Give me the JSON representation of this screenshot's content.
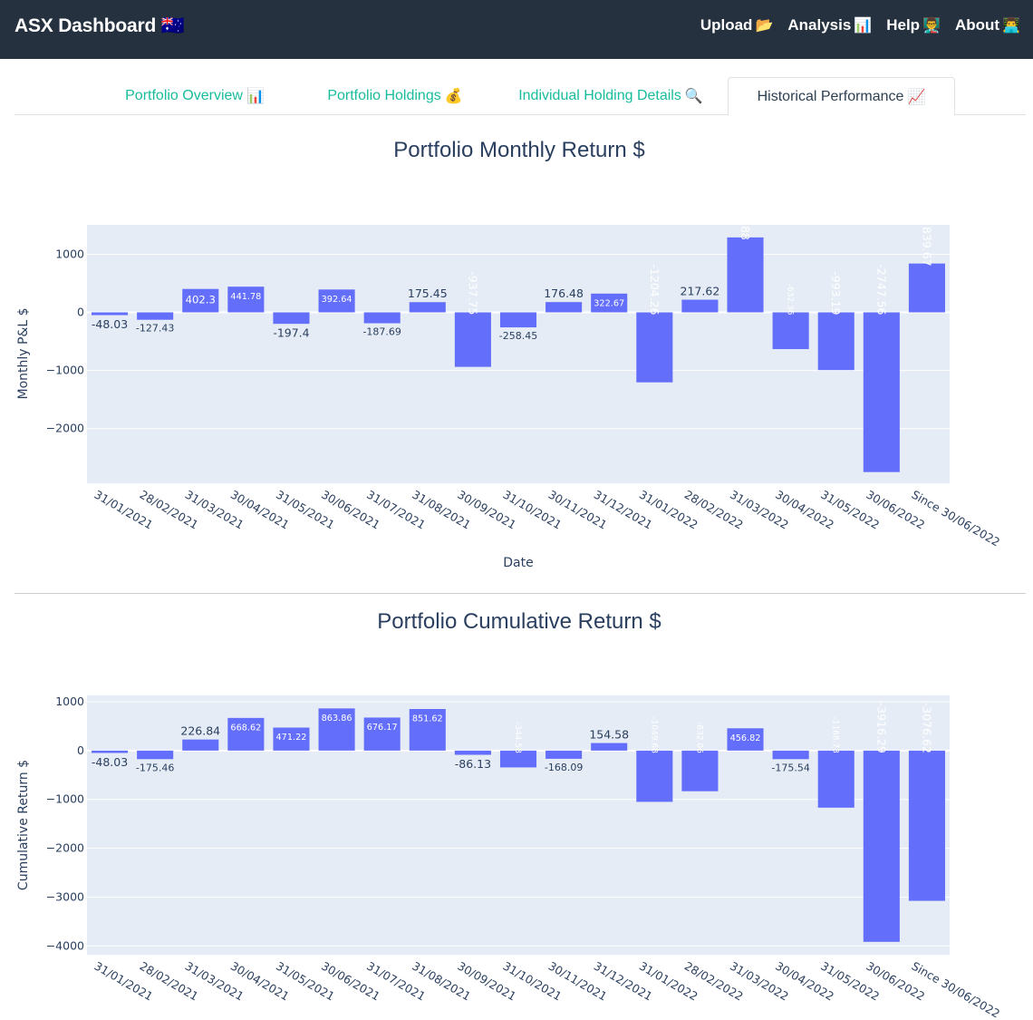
{
  "navbar": {
    "brand": "ASX Dashboard",
    "brand_icon": "🇦🇺",
    "links": [
      {
        "label": "Upload",
        "icon": "📂"
      },
      {
        "label": "Analysis",
        "icon": "📊"
      },
      {
        "label": "Help",
        "icon": "👨‍🏫"
      },
      {
        "label": "About",
        "icon": "👨‍💻"
      }
    ]
  },
  "tabs": [
    {
      "label": "Portfolio Overview",
      "icon": "📊",
      "active": false
    },
    {
      "label": "Portfolio Holdings",
      "icon": "💰",
      "active": false
    },
    {
      "label": "Individual Holding Details",
      "icon": "🔍",
      "active": false
    },
    {
      "label": "Historical Performance",
      "icon": "📈",
      "active": true
    }
  ],
  "colors": {
    "navbar_bg": "#263140",
    "tab_link": "#18bc9c",
    "bar": "#636efa",
    "plot_bg": "#e5ecf6"
  },
  "chart_data": [
    {
      "type": "bar",
      "title": "Portfolio Monthly Return $",
      "xlabel": "Date",
      "ylabel": "Monthly P&L $",
      "ylim": [
        -2940,
        1505
      ],
      "yticks": [
        "1000",
        "0",
        "−1000",
        "−2000"
      ],
      "ytick_values": [
        1000,
        0,
        -1000,
        -2000
      ],
      "categories": [
        "31/01/2021",
        "28/02/2021",
        "31/03/2021",
        "30/04/2021",
        "31/05/2021",
        "30/06/2021",
        "31/07/2021",
        "31/08/2021",
        "30/09/2021",
        "31/10/2021",
        "30/11/2021",
        "31/12/2021",
        "31/01/2022",
        "28/02/2022",
        "31/03/2022",
        "30/04/2022",
        "31/05/2022",
        "30/06/2022",
        "Since 30/06/2022"
      ],
      "values": [
        -48.03,
        -127.43,
        402.3,
        441.78,
        -197.4,
        392.64,
        -187.69,
        175.45,
        -937.75,
        -258.45,
        176.48,
        322.67,
        -1204.26,
        217.62,
        1288.88,
        -632.36,
        -993.19,
        -2747.56,
        839.67
      ],
      "labels": [
        "-48.03",
        "-127.43",
        "402.3",
        "441.78",
        "-197.4",
        "392.64",
        "-187.69",
        "175.45",
        "-937.75",
        "-258.45",
        "176.48",
        "322.67",
        "-1204.26",
        "217.62",
        "1288.88",
        "-632.36",
        "-993.19",
        "-2747.56",
        "839.67"
      ],
      "grid": true
    },
    {
      "type": "bar",
      "title": "Portfolio Cumulative Return $",
      "xlabel": "",
      "ylabel": "Cumulative Return $",
      "ylim": [
        -4180,
        1130
      ],
      "yticks": [
        "1000",
        "0",
        "−1000",
        "−2000",
        "−3000",
        "−4000"
      ],
      "ytick_values": [
        1000,
        0,
        -1000,
        -2000,
        -3000,
        -4000
      ],
      "categories": [
        "31/01/2021",
        "28/02/2021",
        "31/03/2021",
        "30/04/2021",
        "31/05/2021",
        "30/06/2021",
        "31/07/2021",
        "31/08/2021",
        "30/09/2021",
        "31/10/2021",
        "30/11/2021",
        "31/12/2021",
        "31/01/2022",
        "28/02/2022",
        "31/03/2022",
        "30/04/2022",
        "31/05/2022",
        "30/06/2022",
        "Since 30/06/2022"
      ],
      "values": [
        -48.03,
        -175.46,
        226.84,
        668.62,
        471.22,
        863.86,
        676.17,
        851.62,
        -86.13,
        -344.58,
        -168.09,
        154.58,
        -1049.68,
        -832.06,
        456.82,
        -175.54,
        -1168.73,
        -3916.29,
        -3076.62
      ],
      "labels": [
        "-48.03",
        "-175.46",
        "226.84",
        "668.62",
        "471.22",
        "863.86",
        "676.17",
        "851.62",
        "-86.13",
        "-344.58",
        "-168.09",
        "154.58",
        "-1049.68",
        "-832.06",
        "456.82",
        "-175.54",
        "-1168.73",
        "-3916.29",
        "-3076.62"
      ],
      "grid": true
    }
  ]
}
